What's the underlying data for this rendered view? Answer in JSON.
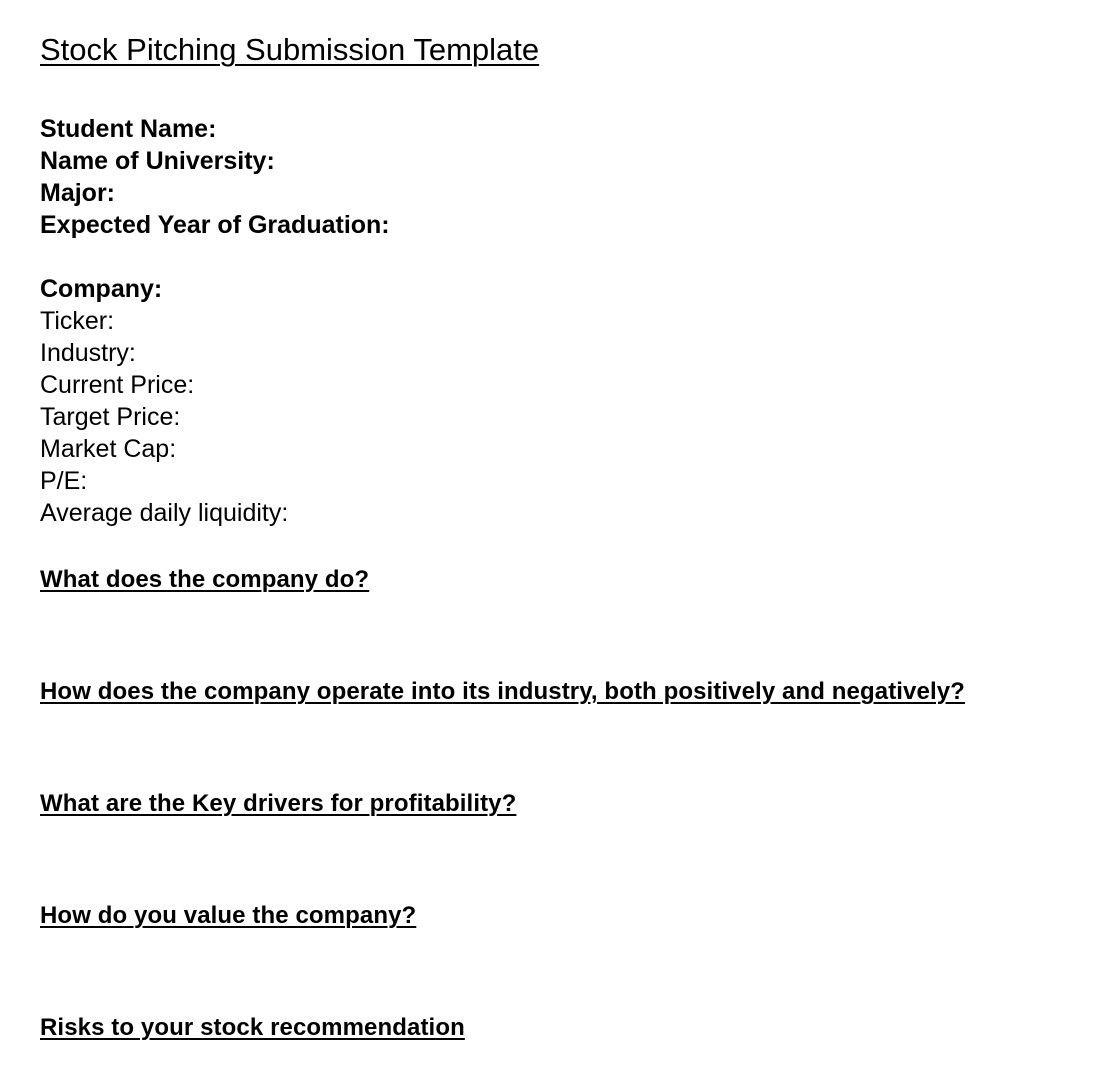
{
  "title": "Stock Pitching Submission Template",
  "student_fields": [
    "Student Name:",
    "Name of University:",
    "Major:",
    "Expected Year of Graduation:"
  ],
  "company_heading": "Company:",
  "company_fields": [
    "Ticker:",
    "Industry:",
    "Current Price:",
    "Target Price:",
    "Market Cap:",
    "P/E:",
    "Average daily liquidity:"
  ],
  "questions": [
    "What does the company do?",
    "How does the company operate into its industry, both positively and negatively?",
    "What are the Key drivers for profitability?",
    "How do you value the company?",
    "Risks to your stock recommendation"
  ]
}
